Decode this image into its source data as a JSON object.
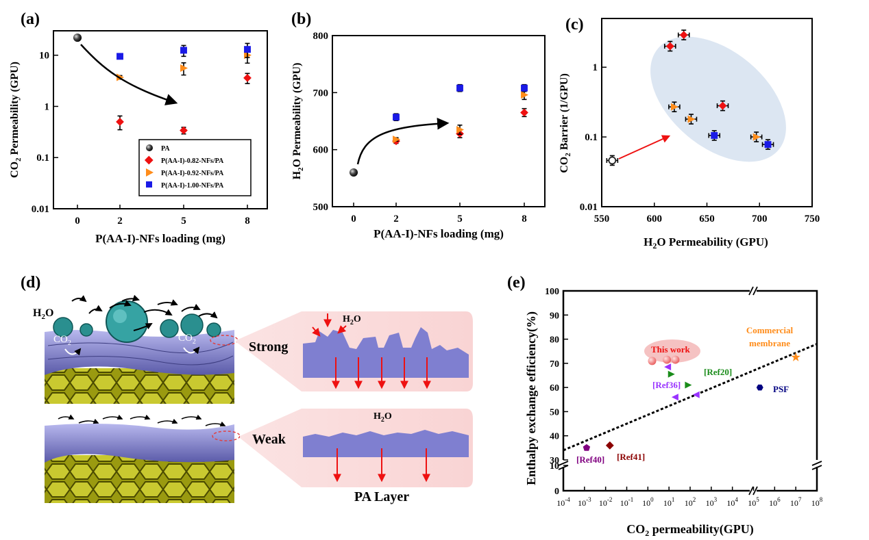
{
  "panels": {
    "a": "(a)",
    "b": "(b)",
    "c": "(c)",
    "d": "(d)",
    "e": "(e)"
  },
  "colors": {
    "pa": "#222222",
    "red": "#ee1111",
    "orange": "#ff8c1a",
    "blue": "#1a1ae6",
    "ellipse": "#dce6f2",
    "green": "#1a8c1a",
    "purple": "#9933ff",
    "darkpurple": "#800080",
    "darkred": "#8b0000",
    "navy": "#000080",
    "pink": "#f5c2c2"
  },
  "chart_data": [
    {
      "id": "a",
      "type": "scatter",
      "yscale": "log",
      "ylabel": "CO2 Permeability (GPU)",
      "xlabel": "P(AA-I)-NFs loading (mg)",
      "x_ticks": [
        "0",
        "2",
        "5",
        "8"
      ],
      "y_ticks": [
        "0.01",
        "0.1",
        "1",
        "10"
      ],
      "ylim": [
        0.01,
        30
      ],
      "series": [
        {
          "name": "PA",
          "marker": "sphere",
          "color": "#222222",
          "points": [
            [
              0,
              22
            ]
          ]
        },
        {
          "name": "P(AA-I)-0.82-NFs/PA",
          "marker": "diamond",
          "color": "#ee1111",
          "points": [
            [
              2,
              0.5
            ],
            [
              5,
              0.34
            ],
            [
              8,
              3.6
            ]
          ],
          "err": [
            0.15,
            0.05,
            0.8
          ]
        },
        {
          "name": "P(AA-I)-0.92-NFs/PA",
          "marker": "triangle-right",
          "color": "#ff8c1a",
          "points": [
            [
              2,
              3.7
            ],
            [
              5,
              5.6
            ],
            [
              8,
              10
            ]
          ],
          "err": [
            0.3,
            1.5,
            3
          ]
        },
        {
          "name": "P(AA-I)-1.00-NFs/PA",
          "marker": "square",
          "color": "#1a1ae6",
          "points": [
            [
              2,
              9.5
            ],
            [
              5,
              12.5
            ],
            [
              8,
              13
            ]
          ],
          "err": [
            0.5,
            3,
            4
          ]
        }
      ]
    },
    {
      "id": "b",
      "type": "scatter",
      "ylabel": "H2O Permeability (GPU)",
      "xlabel": "P(AA-I)-NFs loading (mg)",
      "x_ticks": [
        "0",
        "2",
        "5",
        "8"
      ],
      "y_ticks": [
        "500",
        "600",
        "700",
        "800"
      ],
      "ylim": [
        500,
        800
      ],
      "series": [
        {
          "name": "PA",
          "marker": "sphere",
          "color": "#222222",
          "points": [
            [
              0,
              560
            ]
          ]
        },
        {
          "name": "P(AA-I)-0.82-NFs/PA",
          "marker": "diamond",
          "color": "#ee1111",
          "points": [
            [
              2,
              615
            ],
            [
              5,
              628
            ],
            [
              8,
              665
            ]
          ],
          "err": [
            4,
            7,
            7
          ]
        },
        {
          "name": "P(AA-I)-0.92-NFs/PA",
          "marker": "triangle-right",
          "color": "#ff8c1a",
          "points": [
            [
              2,
              618
            ],
            [
              5,
              635
            ],
            [
              8,
              696
            ]
          ],
          "err": [
            3,
            8,
            8
          ]
        },
        {
          "name": "P(AA-I)-1.00-NFs/PA",
          "marker": "square",
          "color": "#1a1ae6",
          "points": [
            [
              2,
              657
            ],
            [
              5,
              708
            ],
            [
              8,
              708
            ]
          ],
          "err": [
            6,
            6,
            6
          ]
        }
      ]
    },
    {
      "id": "c",
      "type": "scatter",
      "yscale": "log",
      "ylabel": "CO2 Barrier (1/GPU)",
      "xlabel": "H2O Permeability (GPU)",
      "x_ticks": [
        "550",
        "600",
        "650",
        "700",
        "750"
      ],
      "y_ticks": [
        "0.01",
        "0.1",
        "1"
      ],
      "xlim": [
        550,
        750
      ],
      "ylim": [
        0.01,
        5
      ],
      "series": [
        {
          "name": "PA",
          "marker": "circle-open",
          "color": "#222222",
          "points": [
            [
              560,
              0.046
            ]
          ]
        },
        {
          "name": "0.82",
          "marker": "diamond",
          "color": "#ee1111",
          "points": [
            [
              615,
              2.0
            ],
            [
              628,
              2.9
            ],
            [
              665,
              0.28
            ]
          ]
        },
        {
          "name": "0.92",
          "marker": "triangle-right",
          "color": "#ff8c1a",
          "points": [
            [
              619,
              0.27
            ],
            [
              635,
              0.18
            ],
            [
              697,
              0.1
            ]
          ]
        },
        {
          "name": "1.00",
          "marker": "square",
          "color": "#1a1ae6",
          "points": [
            [
              657,
              0.105
            ],
            [
              708,
              0.078
            ]
          ]
        }
      ]
    },
    {
      "id": "e",
      "type": "scatter",
      "ylabel": "Enthalpy exchange efficiency(%)",
      "xlabel": "CO2 permeability(GPU)",
      "xscale": "log",
      "x_ticks": [
        "-4",
        "-3",
        "-2",
        "-1",
        "0",
        "1",
        "2",
        "3",
        "4",
        "5",
        "6",
        "7",
        "8"
      ],
      "y_ticks": [
        "0",
        "10",
        "30",
        "40",
        "50",
        "60",
        "70",
        "80",
        "90",
        "100"
      ],
      "labels": {
        "this_work": "This work",
        "commercial_1": "Commercial",
        "commercial_2": "membrane",
        "ref20": "[Ref20]",
        "ref36": "[Ref36]",
        "ref40": "[Ref40]",
        "ref41": "[Ref41]",
        "psf": "PSF"
      },
      "points": [
        {
          "name": "This work",
          "x_log": 0.2,
          "y": 71
        },
        {
          "name": "This work",
          "x_log": 0.9,
          "y": 71.5
        },
        {
          "name": "This work",
          "x_log": 1.3,
          "y": 71.5
        },
        {
          "name": "Ref36",
          "x_log": 0.95,
          "y": 68.5
        },
        {
          "name": "Ref20",
          "x_log": 1.1,
          "y": 65.5
        },
        {
          "name": "Ref20",
          "x_log": 1.9,
          "y": 61
        },
        {
          "name": "Ref36",
          "x_log": 1.3,
          "y": 56
        },
        {
          "name": "Ref36",
          "x_log": 2.3,
          "y": 57
        },
        {
          "name": "PSF",
          "x_log": 5.3,
          "y": 60
        },
        {
          "name": "Commercial membrane",
          "x_log": 7.0,
          "y": 72.5
        },
        {
          "name": "Ref40",
          "x_log": -2.9,
          "y": 35
        },
        {
          "name": "Ref41",
          "x_log": -1.8,
          "y": 36
        }
      ],
      "trendline": [
        [
          -4,
          34
        ],
        [
          8,
          78
        ]
      ]
    }
  ],
  "legend_a": [
    "PA",
    "P(AA-I)-0.82-NFs/PA",
    "P(AA-I)-0.92-NFs/PA",
    "P(AA-I)-1.00-NFs/PA"
  ],
  "schematic": {
    "h2o": "H2O",
    "co2": "CO2",
    "strong": "Strong",
    "weak": "Weak",
    "pa_layer": "PA Layer"
  }
}
